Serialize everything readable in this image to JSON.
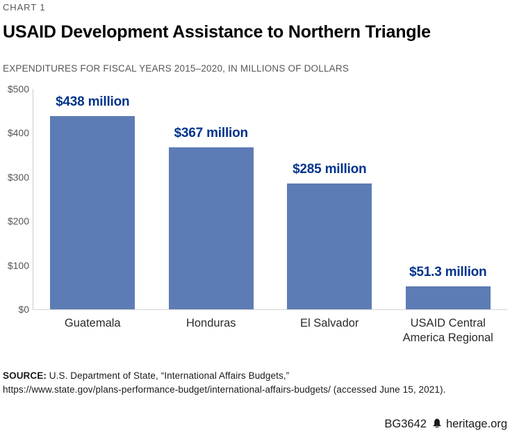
{
  "page": {
    "kicker": "CHART 1",
    "title": "USAID Development Assistance to Northern Triangle",
    "subtitle": "EXPENDITURES FOR FISCAL YEARS 2015–2020, IN MILLIONS OF DOLLARS",
    "source_label": "SOURCE:",
    "source_text": " U.S. Department of State, “International Affairs Budgets,”",
    "source_line2": "https://www.state.gov/plans-performance-budget/international-affairs-budgets/ (accessed June 15, 2021).",
    "footer_id": "BG3642",
    "footer_site": "heritage.org"
  },
  "colors": {
    "bar": "#5d7cb5",
    "value_label": "#00338c",
    "axis_line": "#cccccc",
    "tick_label": "#54565a",
    "category_label": "#2b2b2b"
  },
  "chart_data": {
    "type": "bar",
    "title": "USAID Development Assistance to Northern Triangle",
    "subtitle": "EXPENDITURES FOR FISCAL YEARS 2015–2020, IN MILLIONS OF DOLLARS",
    "categories": [
      "Guatemala",
      "Honduras",
      "El Salvador",
      "USAID Central America Regional"
    ],
    "values": [
      438,
      367,
      285,
      51.3
    ],
    "value_labels": [
      "$438 million",
      "$367 million",
      "$285 million",
      "$51.3 million"
    ],
    "ylim": [
      0,
      500
    ],
    "yticks": [
      {
        "label": "$0",
        "value": 0
      },
      {
        "label": "$100",
        "value": 100
      },
      {
        "label": "$200",
        "value": 200
      },
      {
        "label": "$300",
        "value": 300
      },
      {
        "label": "$400",
        "value": 400
      },
      {
        "label": "$500",
        "value": 500
      }
    ],
    "grid": false,
    "legend": false,
    "xlabel": "",
    "ylabel": ""
  }
}
